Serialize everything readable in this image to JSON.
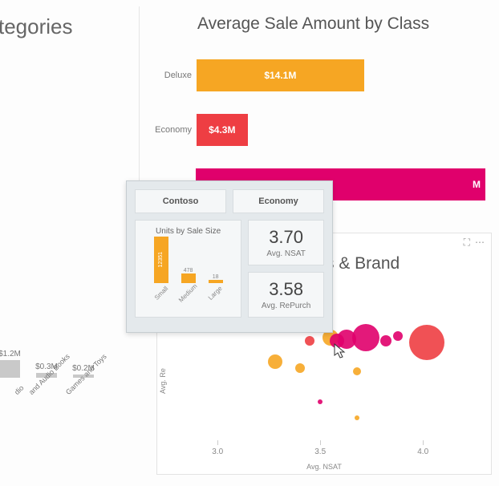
{
  "left_panel": {
    "title_partial": "tegories"
  },
  "bar_chart": {
    "type": "bar-horizontal",
    "title": "Average Sale Amount by Class",
    "title_fontsize": 21,
    "label_fontsize": 11,
    "value_fontsize": 12,
    "background_color": "#ffffff",
    "max_value": 25.0,
    "bars": [
      {
        "label": "Deluxe",
        "value_label": "$14.1M",
        "value": 14.1,
        "color": "#f6a623"
      },
      {
        "label": "Economy",
        "value_label": "$4.3M",
        "value": 4.3,
        "color": "#ee3e43"
      },
      {
        "label": "",
        "value_label": "M",
        "value": 25.0,
        "color": "#e0006c",
        "truncated": true
      }
    ]
  },
  "mini_chart": {
    "type": "bar",
    "bar_color": "#c9c9c9",
    "label_fontsize": 9,
    "value_fontsize": 10,
    "items": [
      {
        "label": "dio",
        "value_label": "$1.2M",
        "h": 22
      },
      {
        "label": "and Audio Books",
        "value_label": "$0.3M",
        "h": 6
      },
      {
        "label": "Games and Toys",
        "value_label": "$0.2M",
        "h": 4
      }
    ]
  },
  "scatter": {
    "type": "bubble",
    "title_partial": "s & Brand",
    "xlabel": "Avg. NSAT",
    "ylabel": "Avg. Re",
    "xlim": [
      2.8,
      4.3
    ],
    "xticks": [
      3.0,
      3.5,
      4.0
    ],
    "background_color": "#ffffff",
    "border_color": "#e3e3e3",
    "bubbles": [
      {
        "x": 4.02,
        "y": 0.62,
        "r": 22,
        "color": "#ee3e43"
      },
      {
        "x": 3.72,
        "y": 0.65,
        "r": 17,
        "color": "#e0006c"
      },
      {
        "x": 3.63,
        "y": 0.64,
        "r": 12,
        "color": "#e0006c"
      },
      {
        "x": 3.55,
        "y": 0.65,
        "r": 10,
        "color": "#f6a623"
      },
      {
        "x": 3.58,
        "y": 0.63,
        "r": 9,
        "color": "#e0006c"
      },
      {
        "x": 3.82,
        "y": 0.63,
        "r": 7,
        "color": "#e0006c"
      },
      {
        "x": 3.45,
        "y": 0.63,
        "r": 6,
        "color": "#ee3e43"
      },
      {
        "x": 3.28,
        "y": 0.5,
        "r": 9,
        "color": "#f6a623"
      },
      {
        "x": 3.4,
        "y": 0.46,
        "r": 6,
        "color": "#f6a623"
      },
      {
        "x": 3.68,
        "y": 0.44,
        "r": 5,
        "color": "#f6a623"
      },
      {
        "x": 3.5,
        "y": 0.25,
        "r": 3,
        "color": "#e0006c"
      },
      {
        "x": 3.68,
        "y": 0.15,
        "r": 3,
        "color": "#f6a623"
      },
      {
        "x": 3.88,
        "y": 0.66,
        "r": 6,
        "color": "#e0006c"
      }
    ]
  },
  "tooltip": {
    "header_left": "Contoso",
    "header_right": "Economy",
    "card_bg": "#e4e9ec",
    "cell_bg": "#f5f7f8",
    "border_color": "#d8dde0",
    "units_title": "Units by Sale Size",
    "units": {
      "type": "bar",
      "bar_color": "#f6a623",
      "items": [
        {
          "label": "Small",
          "value_label": "12351",
          "h": 58
        },
        {
          "label": "Medium",
          "value_label": "478",
          "h": 12
        },
        {
          "label": "Large",
          "value_label": "18",
          "h": 4
        }
      ]
    },
    "metric1_value": "3.70",
    "metric1_label": "Avg. NSAT",
    "metric2_value": "3.58",
    "metric2_label": "Avg. RePurch"
  },
  "icons": {
    "focus": "⛶",
    "more": "⋯"
  }
}
